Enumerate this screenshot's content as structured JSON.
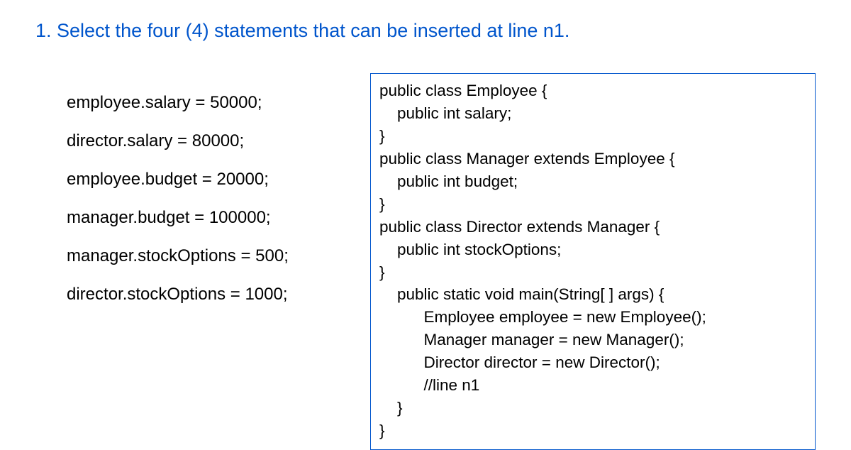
{
  "title_color": "#0055cc",
  "code_border_color": "#0055cc",
  "question_title": "1. Select the four (4) statements that can be inserted at line n1.",
  "options": [
    "employee.salary = 50000;",
    "director.salary = 80000;",
    "employee.budget = 20000;",
    "manager.budget = 100000;",
    "manager.stockOptions = 500;",
    "director.stockOptions = 1000;"
  ],
  "code_lines": [
    "public class Employee {",
    "    public int salary;",
    "}",
    "public class Manager extends Employee {",
    "    public int budget;",
    "}",
    "public class Director extends Manager {",
    "    public int stockOptions;",
    "}",
    "    public static void main(String[ ] args) {",
    "          Employee employee = new Employee();",
    "          Manager manager = new Manager();",
    "          Director director = new Director();",
    "          //line n1",
    "    }",
    "}"
  ]
}
